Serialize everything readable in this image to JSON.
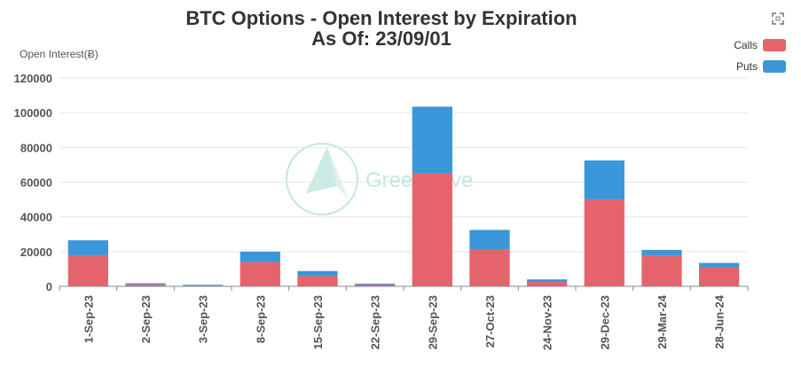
{
  "chart_data": {
    "type": "bar",
    "stacked": true,
    "title": "BTC Options - Open Interest by Expiration",
    "subtitle": "As Of: 23/09/01",
    "ylabel": "Open Interest(Ƀ)",
    "xlabel": "",
    "ylim": [
      0,
      120000
    ],
    "yticks": [
      0,
      20000,
      40000,
      60000,
      80000,
      100000,
      120000
    ],
    "grid": true,
    "legend_position": "top-right",
    "categories": [
      "1-Sep-23",
      "2-Sep-23",
      "3-Sep-23",
      "8-Sep-23",
      "15-Sep-23",
      "22-Sep-23",
      "29-Sep-23",
      "27-Oct-23",
      "24-Nov-23",
      "29-Dec-23",
      "29-Mar-24",
      "28-Jun-24"
    ],
    "series": [
      {
        "name": "Calls",
        "color": "#e5636b",
        "values": [
          17500,
          1100,
          400,
          14000,
          6000,
          1000,
          65000,
          21000,
          2500,
          50000,
          17500,
          11000
        ]
      },
      {
        "name": "Puts",
        "color": "#3a97d9",
        "values": [
          9000,
          700,
          500,
          6000,
          2800,
          500,
          38500,
          11500,
          1500,
          22500,
          3500,
          2500
        ]
      }
    ]
  },
  "watermark": {
    "text": "GreeksLive",
    "color": "#8fd3c6"
  },
  "toolbar": {
    "icon": "fullscreen-icon"
  }
}
